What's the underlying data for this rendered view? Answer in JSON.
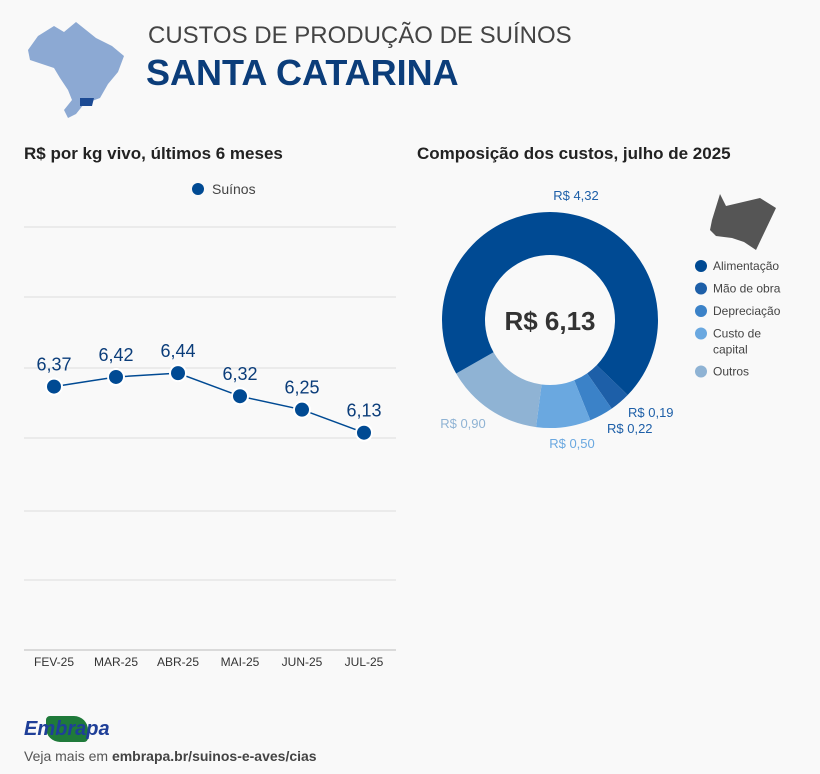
{
  "header": {
    "subtitle": "CUSTOS DE PRODUÇÃO DE SUÍNOS",
    "title": "SANTA CATARINA"
  },
  "footer": {
    "logo_text": "Embrapa",
    "prefix": "Veja mais em",
    "link": "embrapa.br/suinos-e-aves/cias"
  },
  "colors": {
    "primary": "#004a93",
    "title": "#0b3d7a"
  },
  "chart_data": [
    {
      "type": "line",
      "title": "R$ por kg vivo, últimos 6 meses",
      "legend": [
        "Suínos"
      ],
      "legend_position": "top",
      "categories": [
        "FEV-25",
        "MAR-25",
        "ABR-25",
        "MAI-25",
        "JUN-25",
        "JUL-25"
      ],
      "series": [
        {
          "name": "Suínos",
          "values": [
            6.37,
            6.42,
            6.44,
            6.32,
            6.25,
            6.13
          ],
          "labels": [
            "6,37",
            "6,42",
            "6,44",
            "6,32",
            "6,25",
            "6,13"
          ]
        }
      ],
      "ylim": [
        5.0,
        7.2
      ],
      "grid": true
    },
    {
      "type": "pie",
      "title": "Composição dos custos, julho de 2025",
      "center_label": "R$ 6,13",
      "slices": [
        {
          "name": "Alimentação",
          "value": 4.32,
          "label": "R$ 4,32",
          "color": "#004a93"
        },
        {
          "name": "Mão de obra",
          "value": 0.19,
          "label": "R$ 0,19",
          "color": "#1d5fa8"
        },
        {
          "name": "Depreciação",
          "value": 0.22,
          "label": "R$ 0,22",
          "color": "#3b82c8"
        },
        {
          "name": "Custo de capital",
          "value": 0.5,
          "label": "R$ 0,50",
          "color": "#6aa8e0"
        },
        {
          "name": "Outros",
          "value": 0.9,
          "label": "R$ 0,90",
          "color": "#8fb3d4"
        }
      ],
      "legend_position": "right"
    }
  ]
}
